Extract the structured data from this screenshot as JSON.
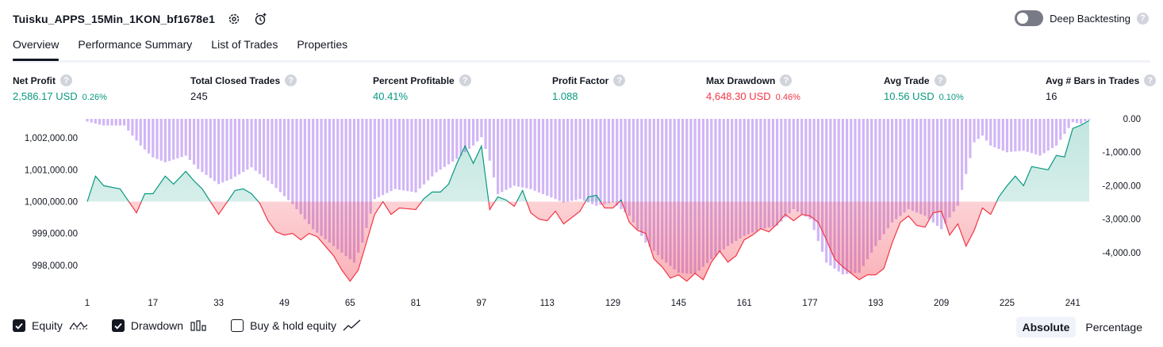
{
  "header": {
    "title": "Tuisku_APPS_15Min_1KON_bf1678e1",
    "deep_backtesting_label": "Deep Backtesting",
    "deep_backtesting_on": false,
    "help_glyph": "?"
  },
  "tabs": [
    {
      "label": "Overview",
      "active": true
    },
    {
      "label": "Performance Summary",
      "active": false
    },
    {
      "label": "List of Trades",
      "active": false
    },
    {
      "label": "Properties",
      "active": false
    }
  ],
  "metrics": [
    {
      "label": "Net Profit",
      "value": "2,586.17 USD",
      "pct": "0.26%",
      "tone": "pos"
    },
    {
      "label": "Total Closed Trades",
      "value": "245",
      "pct": "",
      "tone": "plain"
    },
    {
      "label": "Percent Profitable",
      "value": "40.41%",
      "pct": "",
      "tone": "pos"
    },
    {
      "label": "Profit Factor",
      "value": "1.088",
      "pct": "",
      "tone": "pos"
    },
    {
      "label": "Max Drawdown",
      "value": "4,648.30 USD",
      "pct": "0.46%",
      "tone": "neg"
    },
    {
      "label": "Avg Trade",
      "value": "10.56 USD",
      "pct": "0.10%",
      "tone": "pos"
    },
    {
      "label": "Avg # Bars in Trades",
      "value": "16",
      "pct": "",
      "tone": "plain"
    }
  ],
  "legend": {
    "equity_label": "Equity",
    "drawdown_label": "Drawdown",
    "buyhold_label": "Buy & hold equity",
    "equity_checked": true,
    "drawdown_checked": true,
    "buyhold_checked": false
  },
  "modes": {
    "absolute_label": "Absolute",
    "percentage_label": "Percentage",
    "active": "absolute"
  },
  "colors": {
    "positive": "#089981",
    "negative": "#f23645",
    "drawdown_bars": "#c9a9f5",
    "text": "#131722"
  },
  "chart_data": {
    "type": "area",
    "baseline": 1000000,
    "left_axis": {
      "ticks": [
        1002000,
        1001000,
        1000000,
        999000,
        998000
      ],
      "tick_labels": [
        "1,002,000.00",
        "1,001,000.00",
        "1,000,000.00",
        "999,000.00",
        "998,000.00"
      ],
      "range": [
        997400,
        1002600
      ]
    },
    "right_axis": {
      "ticks": [
        0,
        -1000,
        -2000,
        -3000,
        -4000
      ],
      "tick_labels": [
        "0.00",
        "-1,000.00",
        "-2,000.00",
        "-3,000.00",
        "-4,000.00"
      ],
      "range": [
        -4950,
        0
      ]
    },
    "x_axis": {
      "range": [
        1,
        245
      ],
      "ticks": [
        1,
        17,
        33,
        49,
        65,
        81,
        97,
        113,
        129,
        145,
        161,
        177,
        193,
        209,
        225,
        241
      ],
      "tick_labels": [
        "1",
        "17",
        "33",
        "49",
        "65",
        "81",
        "97",
        "113",
        "129",
        "145",
        "161",
        "177",
        "193",
        "209",
        "225",
        "241"
      ]
    },
    "equity": {
      "x": [
        1,
        3,
        5,
        9,
        13,
        15,
        17,
        20,
        22,
        25,
        27,
        29,
        33,
        37,
        39,
        41,
        43,
        45,
        47,
        49,
        51,
        53,
        55,
        57,
        59,
        61,
        63,
        65,
        67,
        71,
        73,
        75,
        77,
        81,
        83,
        85,
        87,
        89,
        91,
        93,
        95,
        97,
        99,
        101,
        103,
        105,
        107,
        109,
        111,
        113,
        115,
        117,
        119,
        121,
        123,
        125,
        127,
        129,
        131,
        133,
        135,
        137,
        139,
        141,
        143,
        145,
        147,
        149,
        151,
        153,
        155,
        157,
        159,
        161,
        163,
        165,
        167,
        169,
        171,
        173,
        175,
        177,
        179,
        181,
        183,
        185,
        187,
        189,
        191,
        193,
        195,
        197,
        199,
        201,
        203,
        205,
        207,
        209,
        211,
        213,
        215,
        217,
        219,
        221,
        223,
        225,
        227,
        229,
        231,
        233,
        235,
        237,
        239,
        241,
        243,
        245
      ],
      "y": [
        1000000,
        1000800,
        1000500,
        1000400,
        999650,
        1000250,
        1000250,
        1000800,
        1000550,
        1000950,
        1000650,
        1000400,
        999600,
        1000350,
        1000400,
        1000250,
        999950,
        999400,
        999050,
        998950,
        999000,
        998800,
        999000,
        998900,
        998600,
        998300,
        997850,
        997500,
        997850,
        999600,
        1000000,
        999600,
        999800,
        999750,
        1000100,
        1000300,
        1000300,
        1000550,
        1001200,
        1001750,
        1001200,
        1001750,
        999750,
        1000150,
        1000050,
        999850,
        1000350,
        999650,
        999450,
        999400,
        999700,
        999300,
        999500,
        999700,
        1000150,
        1000200,
        999800,
        999800,
        1000050,
        999350,
        999100,
        999000,
        998200,
        997950,
        997600,
        997700,
        997500,
        997750,
        997550,
        998100,
        998450,
        998100,
        998300,
        998800,
        998950,
        999150,
        999050,
        999300,
        999600,
        999400,
        999600,
        999550,
        999350,
        998800,
        998200,
        997950,
        997750,
        997550,
        997700,
        997700,
        997900,
        998700,
        999350,
        999550,
        999250,
        999200,
        999650,
        999700,
        998950,
        999300,
        998600,
        999100,
        999800,
        999600,
        1000150,
        1000500,
        1000800,
        1000500,
        1001100,
        1001050,
        1001000,
        1001450,
        1001400,
        1002300,
        1002400,
        1002550
      ],
      "color_above": "#089981",
      "color_below": "#f23645"
    },
    "drawdown": {
      "x": [
        1,
        5,
        10,
        14,
        17,
        20,
        25,
        28,
        33,
        36,
        41,
        46,
        51,
        56,
        61,
        66,
        68,
        71,
        76,
        81,
        86,
        91,
        95,
        97,
        99,
        101,
        105,
        109,
        113,
        117,
        121,
        125,
        129,
        133,
        137,
        141,
        145,
        149,
        153,
        157,
        161,
        165,
        169,
        173,
        177,
        181,
        185,
        189,
        193,
        197,
        201,
        205,
        209,
        213,
        217,
        219,
        221,
        225,
        229,
        233,
        237,
        241,
        243,
        245
      ],
      "y": [
        -80,
        -200,
        -200,
        -800,
        -1150,
        -1300,
        -1100,
        -1500,
        -1950,
        -1800,
        -1450,
        -1950,
        -2550,
        -3300,
        -3800,
        -4300,
        -3700,
        -2400,
        -2100,
        -2200,
        -1600,
        -1200,
        -800,
        -550,
        -1250,
        -2250,
        -2000,
        -2100,
        -2300,
        -2500,
        -2400,
        -2600,
        -2500,
        -2900,
        -3700,
        -4200,
        -4600,
        -4650,
        -4200,
        -3800,
        -3500,
        -3300,
        -3200,
        -2700,
        -3000,
        -4300,
        -4650,
        -4600,
        -3800,
        -3100,
        -2700,
        -2900,
        -3300,
        -2600,
        -700,
        -500,
        -800,
        -1000,
        -950,
        -1100,
        -800,
        -100,
        -150,
        0
      ],
      "color": "#c9a9f5"
    }
  }
}
